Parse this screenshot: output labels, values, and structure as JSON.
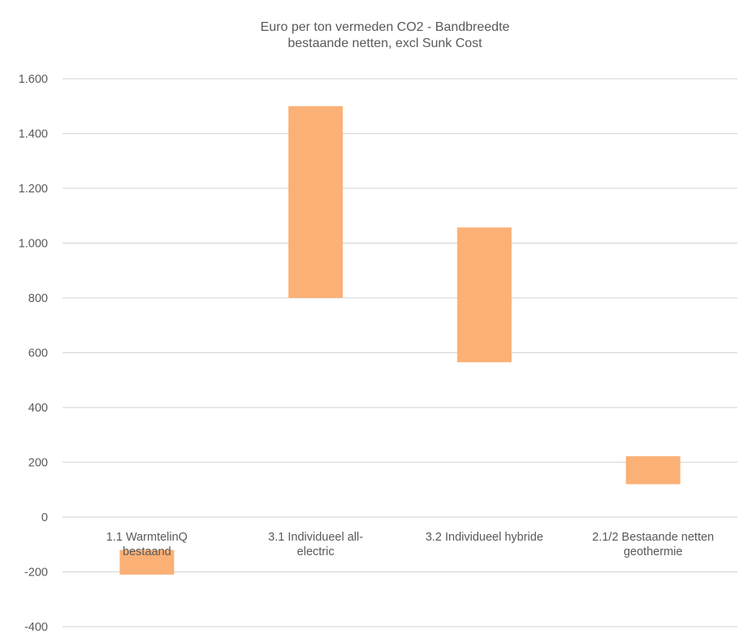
{
  "chart_data": {
    "type": "bar",
    "subtype": "floating-range",
    "title_lines": [
      "Euro per ton vermeden CO2 - Bandbreedte",
      "bestaande netten, excl Sunk Cost"
    ],
    "categories": [
      [
        "1.1 WarmtelinQ",
        "bestaand"
      ],
      [
        "3.1 Individueel all-",
        "electric"
      ],
      [
        "3.2 Individueel hybride"
      ],
      [
        "2.1/2 Bestaande netten",
        "geothermie"
      ]
    ],
    "ranges": [
      {
        "low": -210,
        "high": -120
      },
      {
        "low": 800,
        "high": 1500
      },
      {
        "low": 565,
        "high": 1057
      },
      {
        "low": 120,
        "high": 222
      }
    ],
    "y_ticks": [
      {
        "value": -400,
        "label": "-400"
      },
      {
        "value": -200,
        "label": "-200"
      },
      {
        "value": 0,
        "label": "0"
      },
      {
        "value": 200,
        "label": "200"
      },
      {
        "value": 400,
        "label": "400"
      },
      {
        "value": 600,
        "label": "600"
      },
      {
        "value": 800,
        "label": "800"
      },
      {
        "value": 1000,
        "label": "1.000"
      },
      {
        "value": 1200,
        "label": "1.200"
      },
      {
        "value": 1400,
        "label": "1.400"
      },
      {
        "value": 1600,
        "label": "1.600"
      }
    ],
    "ylim": [
      -400,
      1600
    ],
    "grid": true,
    "bar_color": "#fbb076",
    "grid_color": "#d9d9d9",
    "text_color": "#595959"
  }
}
